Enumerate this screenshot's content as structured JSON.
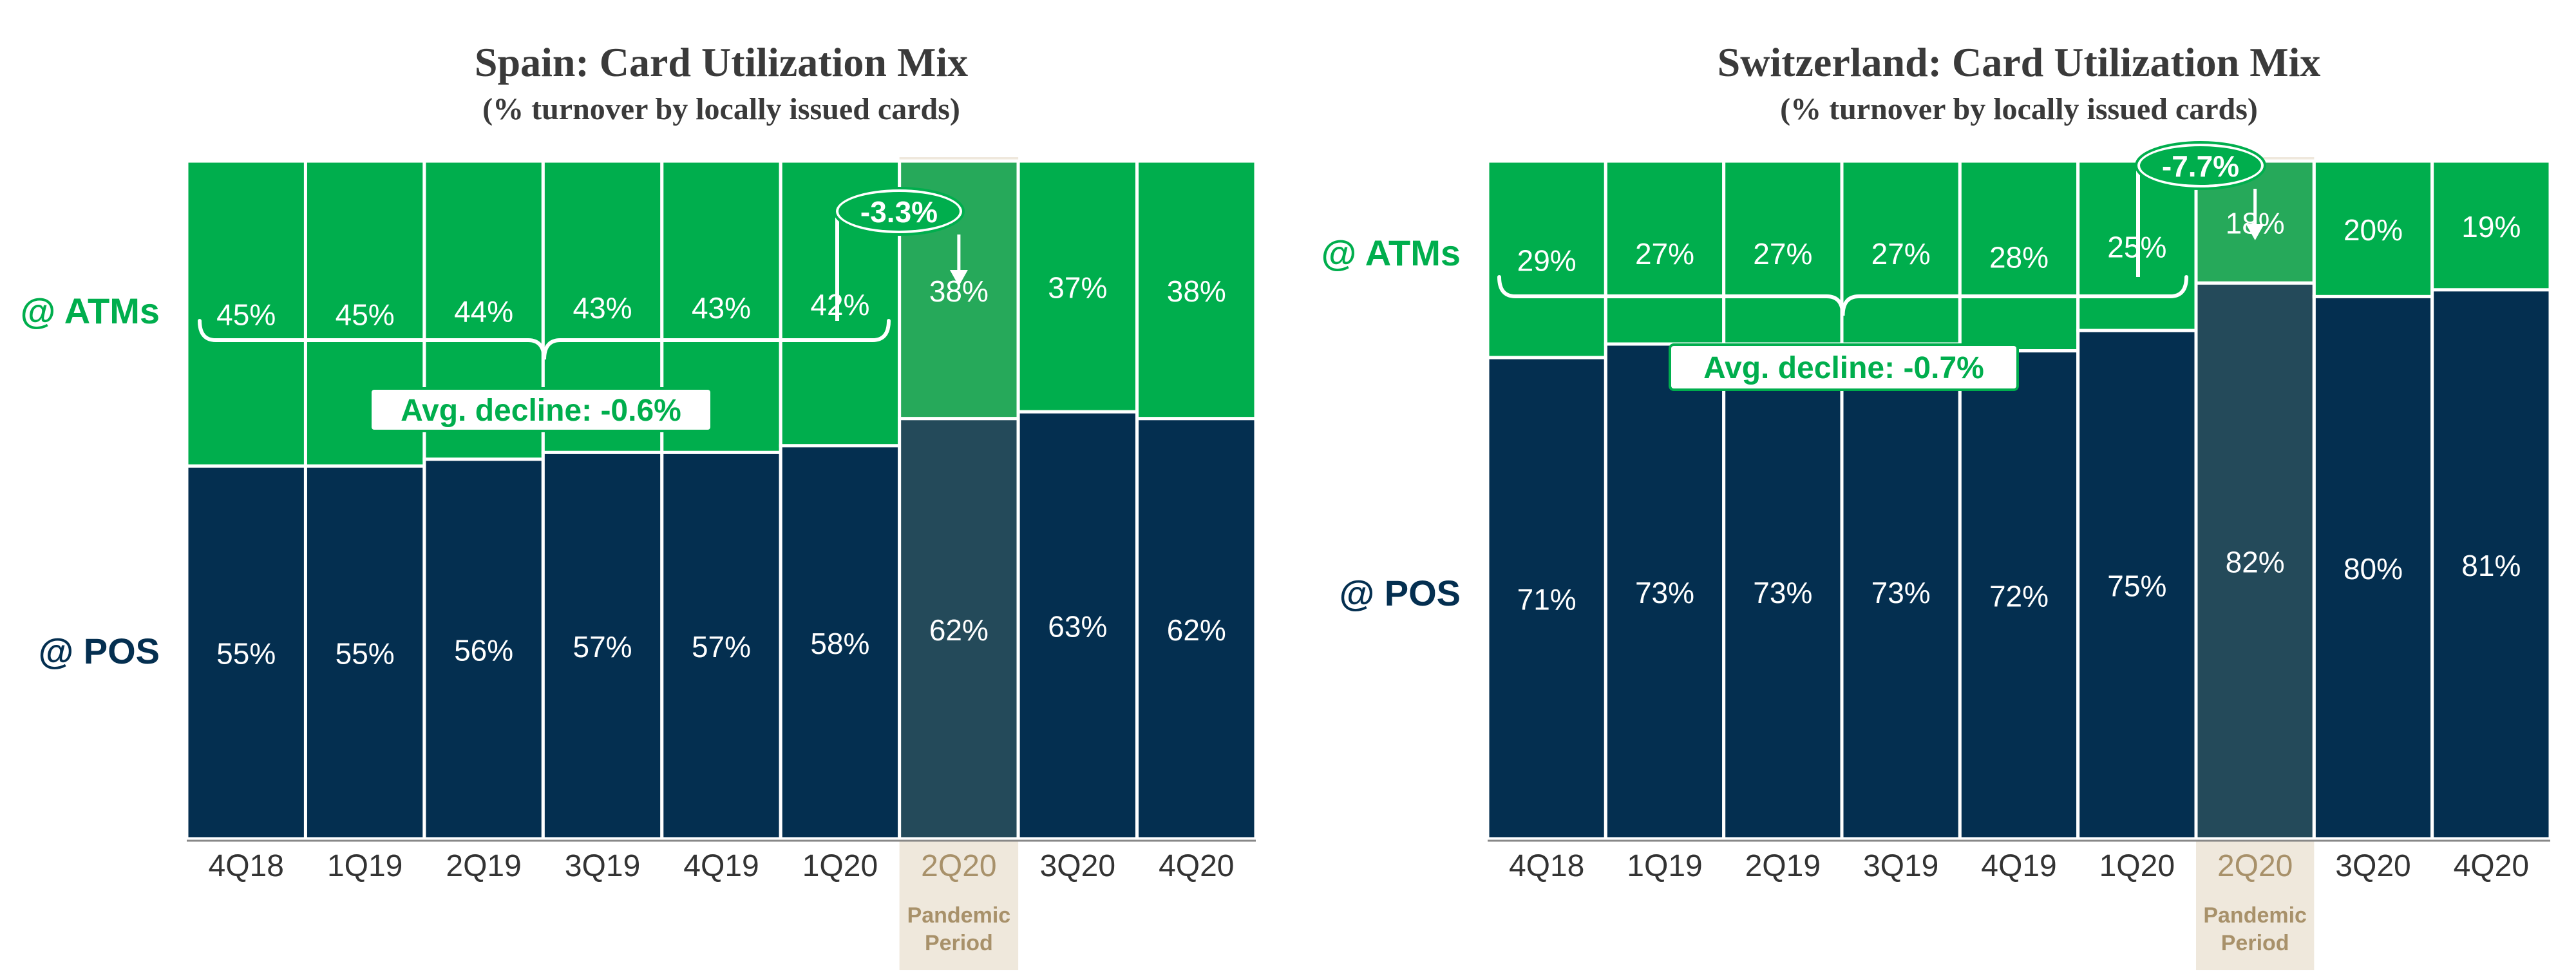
{
  "colors": {
    "atm": "#00AE4D",
    "pos": "#042F50",
    "pandemic_atm": "#26A95A",
    "pandemic_pos": "#244A5A",
    "pandemic_band": "#EFE8DC",
    "pandemic_text": "#A8916A",
    "gap": "#ffffff",
    "title": "#3a3a3a",
    "axis_text": "#333333"
  },
  "chart_data": [
    {
      "type": "bar",
      "stacked": true,
      "title": "Spain: Card Utilization Mix",
      "subtitle": "(% turnover by locally issued cards)",
      "categories": [
        "4Q18",
        "1Q19",
        "2Q19",
        "3Q19",
        "4Q19",
        "1Q20",
        "2Q20",
        "3Q20",
        "4Q20"
      ],
      "series": [
        {
          "name": "@ POS",
          "values": [
            55,
            55,
            56,
            57,
            57,
            58,
            62,
            63,
            62
          ]
        },
        {
          "name": "@ ATMs",
          "values": [
            45,
            45,
            44,
            43,
            43,
            42,
            38,
            37,
            38
          ]
        }
      ],
      "value_labels": {
        "@ POS": [
          "55%",
          "55%",
          "56%",
          "57%",
          "57%",
          "58%",
          "62%",
          "63%",
          "62%"
        ],
        "@ ATMs": [
          "45%",
          "45%",
          "44%",
          "43%",
          "43%",
          "42%",
          "38%",
          "37%",
          "38%"
        ]
      },
      "ylim": [
        0,
        100
      ],
      "highlight": {
        "category": "2Q20",
        "label_line1": "Pandemic",
        "label_line2": "Period"
      },
      "annotations": {
        "avg_decline": "Avg. decline: -0.6%",
        "pandemic_change": "-3.3%"
      }
    },
    {
      "type": "bar",
      "stacked": true,
      "title": "Switzerland: Card Utilization Mix",
      "subtitle": "(% turnover by locally issued cards)",
      "categories": [
        "4Q18",
        "1Q19",
        "2Q19",
        "3Q19",
        "4Q19",
        "1Q20",
        "2Q20",
        "3Q20",
        "4Q20"
      ],
      "series": [
        {
          "name": "@ POS",
          "values": [
            71,
            73,
            73,
            73,
            72,
            75,
            82,
            80,
            81
          ]
        },
        {
          "name": "@ ATMs",
          "values": [
            29,
            27,
            27,
            27,
            28,
            25,
            18,
            20,
            19
          ]
        }
      ],
      "value_labels": {
        "@ POS": [
          "71%",
          "73%",
          "73%",
          "73%",
          "72%",
          "75%",
          "82%",
          "80%",
          "81%"
        ],
        "@ ATMs": [
          "29%",
          "27%",
          "27%",
          "27%",
          "28%",
          "25%",
          "18%",
          "20%",
          "19%"
        ]
      },
      "ylim": [
        0,
        100
      ],
      "highlight": {
        "category": "2Q20",
        "label_line1": "Pandemic",
        "label_line2": "Period"
      },
      "annotations": {
        "avg_decline": "Avg. decline: -0.7%",
        "pandemic_change": "-7.7%"
      }
    }
  ]
}
